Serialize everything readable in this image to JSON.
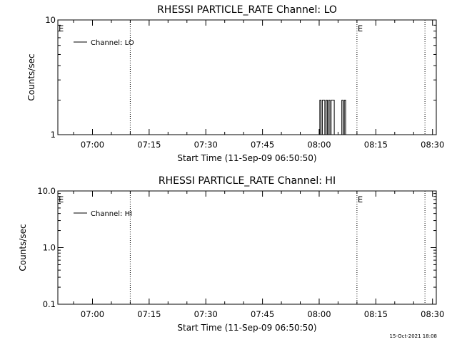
{
  "footer": {
    "timestamp": "15-Oct-2021 18:08"
  },
  "chart_data": [
    {
      "type": "line",
      "title": "RHESSI PARTICLE_RATE Channel: LO",
      "xlabel": "Start Time (11-Sep-09 06:50:50)",
      "ylabel": "Counts/sec",
      "y_scale": "log",
      "ylim": [
        1,
        10
      ],
      "y_ticks": [
        1,
        10
      ],
      "y_tick_labels": [
        "1",
        "10"
      ],
      "xlim": [
        "06:50:50",
        "08:31:00"
      ],
      "x_ticks": [
        "07:00",
        "07:15",
        "07:30",
        "07:45",
        "08:00",
        "08:15",
        "08:30"
      ],
      "legend": {
        "label": "Channel: LO",
        "placement": "top-left"
      },
      "markers": [
        {
          "time": "06:50:50",
          "label": "E"
        },
        {
          "time": "07:10:00",
          "label": ""
        },
        {
          "time": "08:10:00",
          "label": "E"
        },
        {
          "time": "08:28:00",
          "label": ""
        }
      ],
      "series": [
        {
          "x": [
            "06:50:50",
            "08:00:10",
            "08:00:10",
            "08:00:30",
            "08:00:30",
            "08:00:50",
            "08:00:50",
            "08:01:30",
            "08:01:30",
            "08:01:50",
            "08:01:50",
            "08:02:10",
            "08:02:10",
            "08:02:30",
            "08:02:30",
            "08:02:50",
            "08:02:50",
            "08:03:10",
            "08:03:10",
            "08:04:00",
            "08:04:00",
            "08:04:20",
            "08:04:20",
            "08:06:00",
            "08:06:00",
            "08:06:20",
            "08:06:20",
            "08:06:40",
            "08:06:40",
            "08:07:00",
            "08:07:00",
            "08:07:40"
          ],
          "y": [
            1,
            1,
            2,
            2,
            1,
            1,
            2,
            2,
            1,
            1,
            2,
            2,
            1,
            1,
            2,
            2,
            1,
            1,
            2,
            2,
            1,
            1,
            1,
            1,
            2,
            2,
            1,
            1,
            2,
            2,
            1,
            1
          ]
        }
      ]
    },
    {
      "type": "line",
      "title": "RHESSI PARTICLE_RATE Channel: HI",
      "xlabel": "Start Time (11-Sep-09 06:50:50)",
      "ylabel": "Counts/sec",
      "y_scale": "log",
      "ylim": [
        0.1,
        10
      ],
      "y_ticks": [
        0.1,
        1,
        10
      ],
      "y_tick_labels": [
        "0.1",
        "1.0",
        "10.0"
      ],
      "xlim": [
        "06:50:50",
        "08:31:00"
      ],
      "x_ticks": [
        "07:00",
        "07:15",
        "07:30",
        "07:45",
        "08:00",
        "08:15",
        "08:30"
      ],
      "legend": {
        "label": "Channel: HI",
        "placement": "top-left"
      },
      "markers": [
        {
          "time": "06:50:50",
          "label": "E"
        },
        {
          "time": "07:10:00",
          "label": ""
        },
        {
          "time": "08:10:00",
          "label": "E"
        },
        {
          "time": "08:28:00",
          "label": ""
        }
      ],
      "series": []
    }
  ]
}
